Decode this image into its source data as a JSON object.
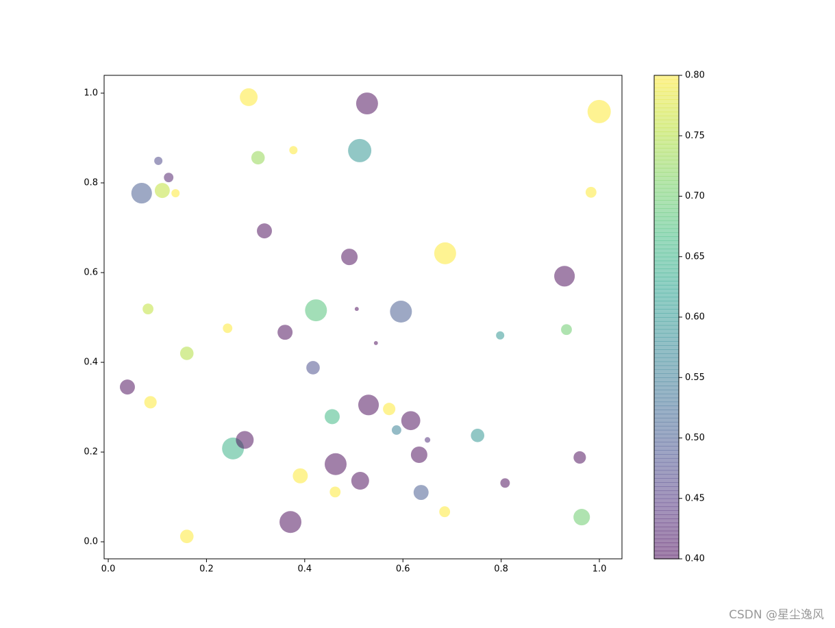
{
  "chart_data": {
    "type": "scatter",
    "x": [
      0.286,
      0.527,
      0.9996,
      0.102,
      0.377,
      0.512,
      0.305,
      0.123,
      0.068,
      0.11,
      0.137,
      0.983,
      0.318,
      0.491,
      0.686,
      0.929,
      0.081,
      0.423,
      0.506,
      0.596,
      0.798,
      0.933,
      0.243,
      0.36,
      0.545,
      0.16,
      0.417,
      0.039,
      0.086,
      0.53,
      0.572,
      0.456,
      0.616,
      0.587,
      0.65,
      0.752,
      0.254,
      0.278,
      0.633,
      0.96,
      0.463,
      0.391,
      0.513,
      0.808,
      0.462,
      0.637,
      0.685,
      0.371,
      0.964,
      0.16
    ],
    "y": [
      0.991,
      0.977,
      0.959,
      0.849,
      0.873,
      0.872,
      0.856,
      0.812,
      0.777,
      0.783,
      0.777,
      0.779,
      0.693,
      0.635,
      0.643,
      0.592,
      0.519,
      0.516,
      0.519,
      0.513,
      0.46,
      0.473,
      0.476,
      0.467,
      0.443,
      0.42,
      0.388,
      0.345,
      0.311,
      0.305,
      0.296,
      0.279,
      0.27,
      0.249,
      0.227,
      0.237,
      0.208,
      0.227,
      0.194,
      0.188,
      0.173,
      0.147,
      0.136,
      0.131,
      0.111,
      0.11,
      0.067,
      0.044,
      0.055,
      0.012
    ],
    "s": [
      350,
      530,
      600,
      75,
      75,
      600,
      200,
      100,
      470,
      250,
      75,
      130,
      250,
      300,
      530,
      470,
      130,
      530,
      18,
      530,
      75,
      130,
      100,
      250,
      18,
      200,
      200,
      250,
      170,
      470,
      170,
      250,
      400,
      100,
      35,
      200,
      530,
      350,
      300,
      170,
      530,
      250,
      350,
      100,
      130,
      250,
      130,
      530,
      300,
      200
    ],
    "c": [
      0.8,
      0.4,
      0.8,
      0.47,
      0.8,
      0.6,
      0.73,
      0.42,
      0.5,
      0.76,
      0.8,
      0.8,
      0.4,
      0.4,
      0.8,
      0.4,
      0.76,
      0.68,
      0.4,
      0.5,
      0.6,
      0.7,
      0.8,
      0.4,
      0.4,
      0.75,
      0.48,
      0.4,
      0.8,
      0.4,
      0.8,
      0.66,
      0.4,
      0.56,
      0.44,
      0.6,
      0.65,
      0.4,
      0.4,
      0.4,
      0.4,
      0.8,
      0.4,
      0.4,
      0.8,
      0.5,
      0.8,
      0.4,
      0.7,
      0.8
    ],
    "colormap": "viridis",
    "alpha": 0.5,
    "clim": [
      0.4,
      0.8
    ],
    "cticks": [
      {
        "value": 0.4,
        "label": "0.40"
      },
      {
        "value": 0.45,
        "label": "0.45"
      },
      {
        "value": 0.5,
        "label": "0.50"
      },
      {
        "value": 0.55,
        "label": "0.55"
      },
      {
        "value": 0.6,
        "label": "0.60"
      },
      {
        "value": 0.65,
        "label": "0.65"
      },
      {
        "value": 0.7,
        "label": "0.70"
      },
      {
        "value": 0.75,
        "label": "0.75"
      },
      {
        "value": 0.8,
        "label": "0.80"
      }
    ],
    "xlim": [
      -0.0084,
      1.046
    ],
    "ylim": [
      -0.038,
      1.0397
    ],
    "xticks": [
      {
        "value": 0,
        "label": "0.0"
      },
      0.2,
      0.4,
      0.6,
      0.8,
      {
        "value": 1,
        "label": "1.0"
      }
    ],
    "yticks": [
      {
        "value": 0,
        "label": "0.0"
      },
      0.2,
      0.4,
      0.6,
      0.8,
      {
        "value": 1,
        "label": "1.0"
      }
    ],
    "watermark": "CSDN @星尘逸风"
  }
}
